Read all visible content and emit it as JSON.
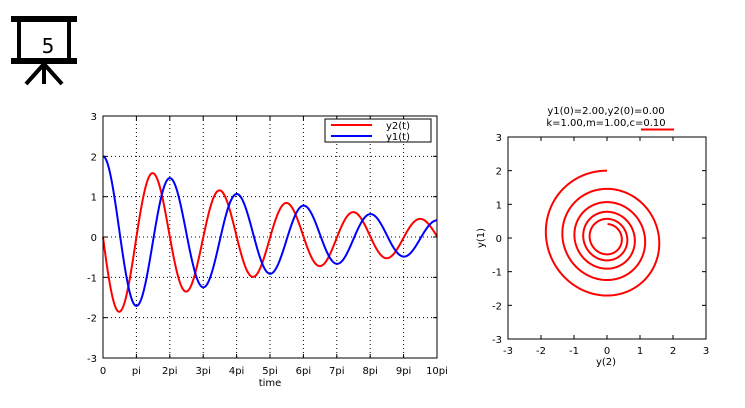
{
  "slide_badge": {
    "number": "5",
    "icon": "presentation-board-icon"
  },
  "chart_data": [
    {
      "type": "line",
      "title": "",
      "xlabel": "time",
      "ylabel": "",
      "xlim": [
        0,
        31.416
      ],
      "ylim": [
        -3,
        3
      ],
      "x_ticks": [
        0,
        3.1416,
        6.2832,
        9.4248,
        12.5664,
        15.708,
        18.8496,
        21.9911,
        25.1327,
        28.2743,
        31.4159
      ],
      "x_tick_labels": [
        "0",
        "pi",
        "2pi",
        "3pi",
        "4pi",
        "5pi",
        "6pi",
        "7pi",
        "8pi",
        "9pi",
        "10pi"
      ],
      "y_ticks": [
        -3,
        -2,
        -1,
        0,
        1,
        2,
        3
      ],
      "y_tick_labels": [
        "-3",
        "-2",
        "-1",
        "0",
        "1",
        "2",
        "3"
      ],
      "grid": true,
      "legend_position": "top-right",
      "series": [
        {
          "name": "y2(t)",
          "color": "#ff0000",
          "model": "damped-oscillator",
          "initial": {
            "y1": 2.0,
            "y2": 0.0
          },
          "params": {
            "k": 1.0,
            "m": 1.0,
            "c": 0.1
          }
        },
        {
          "name": "y1(t)",
          "color": "#0000ff",
          "model": "damped-oscillator",
          "initial": {
            "y1": 2.0,
            "y2": 0.0
          },
          "params": {
            "k": 1.0,
            "m": 1.0,
            "c": 0.1
          }
        }
      ]
    },
    {
      "type": "line",
      "subtitle_line1": "y1(0)=2.00,y2(0)=0.00",
      "subtitle_line2_prefix": "k=1.00,m=1.00,",
      "subtitle_line2_highlight": "c=0.10",
      "highlight_color": "#ff0000",
      "xlabel": "y(2)",
      "ylabel": "y(1)",
      "xlim": [
        -3,
        3
      ],
      "ylim": [
        -3,
        3
      ],
      "x_ticks": [
        -3,
        -2,
        -1,
        0,
        1,
        2,
        3
      ],
      "x_tick_labels": [
        "-3",
        "-2",
        "-1",
        "0",
        "1",
        "2",
        "3"
      ],
      "y_ticks": [
        -3,
        -2,
        -1,
        0,
        1,
        2,
        3
      ],
      "y_tick_labels": [
        "-3",
        "-2",
        "-1",
        "0",
        "1",
        "2",
        "3"
      ],
      "grid": false,
      "series": [
        {
          "name": "phase-portrait",
          "color": "#ff0000",
          "x_var": "y2",
          "y_var": "y1",
          "t_range": [
            0,
            31.416
          ]
        }
      ]
    }
  ]
}
